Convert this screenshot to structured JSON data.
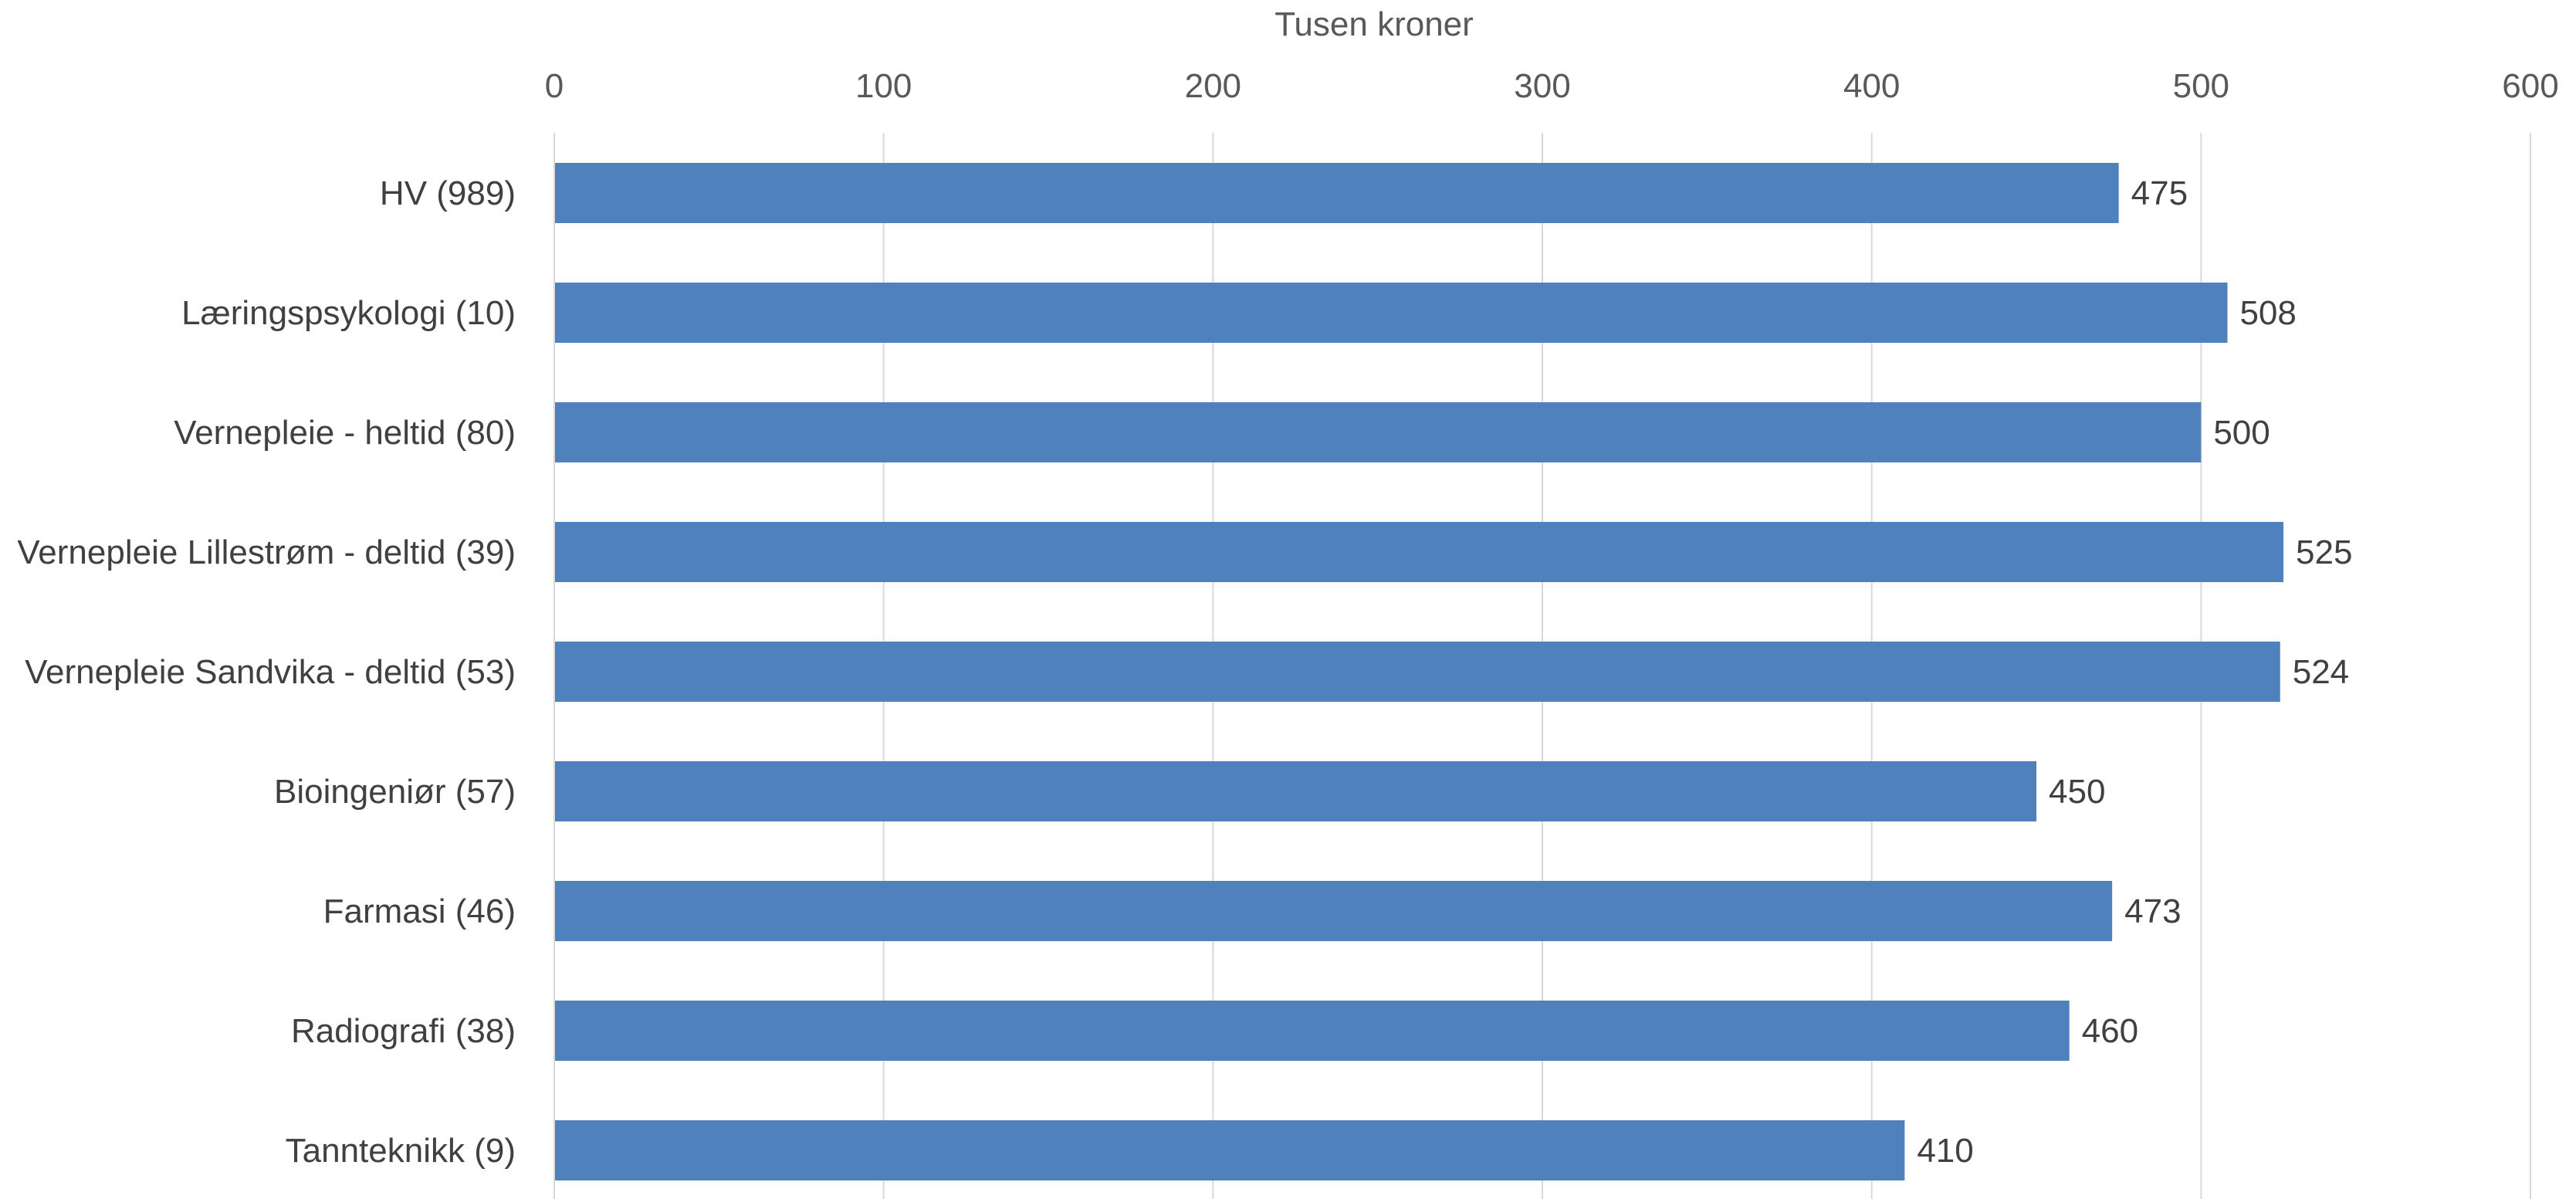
{
  "chart_data": {
    "type": "bar",
    "orientation": "horizontal",
    "title": "",
    "xlabel": "Tusen kroner",
    "ylabel": "",
    "xlim": [
      0,
      600
    ],
    "x_ticks": [
      0,
      100,
      200,
      300,
      400,
      500,
      600
    ],
    "x_axis_position": "top",
    "grid": true,
    "legend": "none",
    "bar_color": "#4F81BD",
    "categories": [
      "HV (989)",
      "Læringspsykologi (10)",
      "Vernepleie - heltid (80)",
      "Vernepleie Lillestrøm - deltid (39)",
      "Vernepleie Sandvika - deltid (53)",
      "Bioingeniør (57)",
      "Farmasi (46)",
      "Radiografi (38)",
      "Tannteknikk (9)"
    ],
    "values": [
      475,
      508,
      500,
      525,
      524,
      450,
      473,
      460,
      410
    ],
    "data_labels": [
      "475",
      "508",
      "500",
      "525",
      "524",
      "450",
      "473",
      "460",
      "410"
    ]
  }
}
